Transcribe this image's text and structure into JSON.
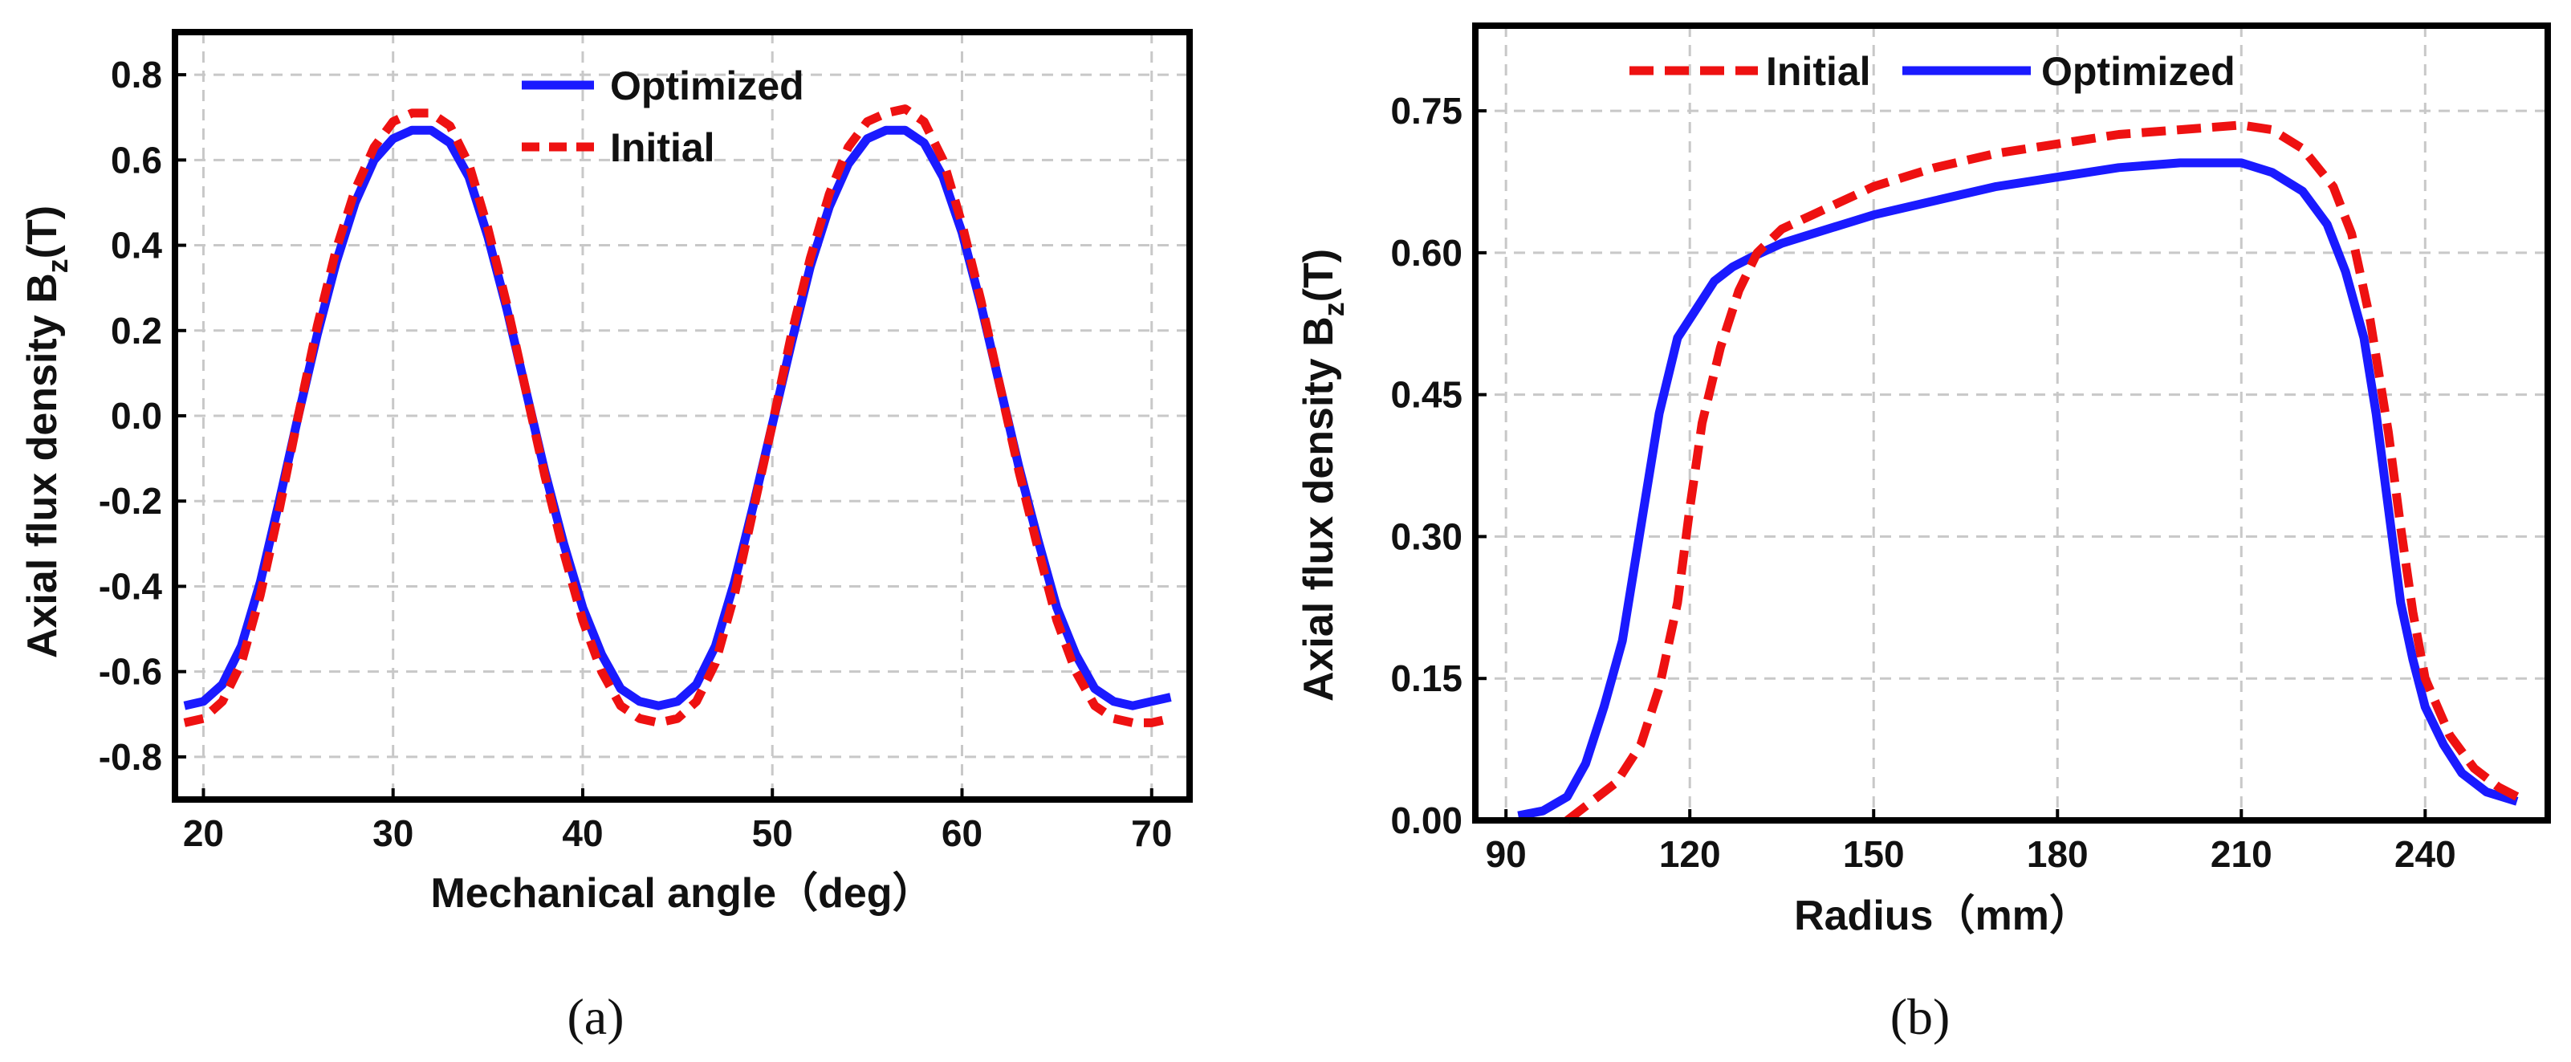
{
  "chart_data": [
    {
      "type": "line",
      "caption": "(a)",
      "xlabel": "Mechanical angle（deg）",
      "ylabel": "Axial flux density B",
      "ylabel_sub": "z",
      "ylabel_unit": "(T)",
      "xlim": [
        18.5,
        72
      ],
      "ylim": [
        -0.9,
        0.9
      ],
      "xticks": [
        "20",
        "30",
        "40",
        "50",
        "60",
        "70"
      ],
      "yticks": [
        "0.8",
        "0.6",
        "0.4",
        "0.2",
        "0.0",
        "-0.2",
        "-0.4",
        "-0.6",
        "-0.8"
      ],
      "grid": true,
      "legend_position": "top-center",
      "series": [
        {
          "name": "Optimized",
          "color": "#1a1aff",
          "style": "solid",
          "x": [
            19,
            20,
            21,
            22,
            23,
            24,
            25,
            26,
            27,
            28,
            29,
            30,
            31,
            32,
            33,
            34,
            35,
            36,
            37,
            38,
            39,
            40,
            41,
            42,
            43,
            44,
            45,
            46,
            47,
            48,
            49,
            50,
            51,
            52,
            53,
            54,
            55,
            56,
            57,
            58,
            59,
            60,
            61,
            62,
            63,
            64,
            65,
            66,
            67,
            68,
            69,
            70,
            71
          ],
          "values": [
            -0.68,
            -0.67,
            -0.63,
            -0.54,
            -0.39,
            -0.2,
            0.0,
            0.19,
            0.36,
            0.5,
            0.6,
            0.65,
            0.67,
            0.67,
            0.64,
            0.56,
            0.42,
            0.25,
            0.06,
            -0.13,
            -0.3,
            -0.45,
            -0.56,
            -0.64,
            -0.67,
            -0.68,
            -0.67,
            -0.63,
            -0.54,
            -0.39,
            -0.21,
            -0.02,
            0.17,
            0.35,
            0.49,
            0.59,
            0.65,
            0.67,
            0.67,
            0.64,
            0.56,
            0.43,
            0.26,
            0.07,
            -0.12,
            -0.29,
            -0.45,
            -0.56,
            -0.64,
            -0.67,
            -0.68,
            -0.67,
            -0.66
          ]
        },
        {
          "name": "Initial",
          "color": "#ee1111",
          "style": "dashed",
          "x": [
            19,
            20,
            21,
            22,
            23,
            24,
            25,
            26,
            27,
            28,
            29,
            30,
            31,
            32,
            33,
            34,
            35,
            36,
            37,
            38,
            39,
            40,
            41,
            42,
            43,
            44,
            45,
            46,
            47,
            48,
            49,
            50,
            51,
            52,
            53,
            54,
            55,
            56,
            57,
            58,
            59,
            60,
            61,
            62,
            63,
            64,
            65,
            66,
            67,
            68,
            69,
            70,
            71
          ],
          "values": [
            -0.72,
            -0.71,
            -0.67,
            -0.58,
            -0.42,
            -0.22,
            0.0,
            0.21,
            0.39,
            0.53,
            0.63,
            0.69,
            0.71,
            0.71,
            0.68,
            0.59,
            0.44,
            0.26,
            0.06,
            -0.14,
            -0.32,
            -0.48,
            -0.6,
            -0.68,
            -0.71,
            -0.72,
            -0.71,
            -0.67,
            -0.58,
            -0.42,
            -0.22,
            -0.02,
            0.19,
            0.37,
            0.52,
            0.63,
            0.69,
            0.71,
            0.72,
            0.69,
            0.6,
            0.45,
            0.27,
            0.07,
            -0.13,
            -0.31,
            -0.48,
            -0.6,
            -0.68,
            -0.71,
            -0.72,
            -0.72,
            -0.71
          ]
        }
      ]
    },
    {
      "type": "line",
      "caption": "(b)",
      "xlabel": "Radius（mm）",
      "ylabel": "Axial flux density B",
      "ylabel_sub": "z",
      "ylabel_unit": "(T)",
      "xlim": [
        85,
        260
      ],
      "ylim": [
        0.0,
        0.84
      ],
      "xticks": [
        "90",
        "120",
        "150",
        "180",
        "210",
        "240"
      ],
      "yticks": [
        "0.75",
        "0.60",
        "0.45",
        "0.30",
        "0.15",
        "0.00"
      ],
      "grid": true,
      "legend_position": "top-center",
      "series": [
        {
          "name": "Initial",
          "color": "#ee1111",
          "style": "dashed",
          "x": [
            100,
            104,
            108,
            112,
            115,
            118,
            120,
            122,
            125,
            128,
            131,
            135,
            140,
            150,
            160,
            170,
            180,
            190,
            200,
            210,
            215,
            220,
            225,
            228,
            231,
            234,
            236,
            238,
            240,
            244,
            248,
            252,
            255
          ],
          "values": [
            0.0,
            0.02,
            0.04,
            0.08,
            0.14,
            0.23,
            0.33,
            0.42,
            0.5,
            0.56,
            0.6,
            0.625,
            0.64,
            0.67,
            0.69,
            0.705,
            0.715,
            0.725,
            0.73,
            0.735,
            0.73,
            0.71,
            0.67,
            0.62,
            0.53,
            0.41,
            0.31,
            0.22,
            0.15,
            0.09,
            0.055,
            0.035,
            0.025
          ]
        },
        {
          "name": "Optimized",
          "color": "#1a1aff",
          "style": "solid",
          "x": [
            92,
            96,
            100,
            103,
            106,
            109,
            112,
            115,
            118,
            121,
            124,
            127,
            130,
            135,
            140,
            150,
            160,
            170,
            180,
            190,
            200,
            210,
            215,
            220,
            224,
            227,
            230,
            232,
            234,
            236,
            238,
            240,
            243,
            246,
            250,
            255
          ],
          "values": [
            0.005,
            0.01,
            0.025,
            0.06,
            0.12,
            0.19,
            0.31,
            0.43,
            0.51,
            0.54,
            0.57,
            0.585,
            0.595,
            0.61,
            0.62,
            0.64,
            0.655,
            0.67,
            0.68,
            0.69,
            0.695,
            0.695,
            0.685,
            0.665,
            0.63,
            0.58,
            0.51,
            0.43,
            0.33,
            0.23,
            0.17,
            0.12,
            0.08,
            0.05,
            0.03,
            0.02
          ]
        }
      ]
    }
  ]
}
